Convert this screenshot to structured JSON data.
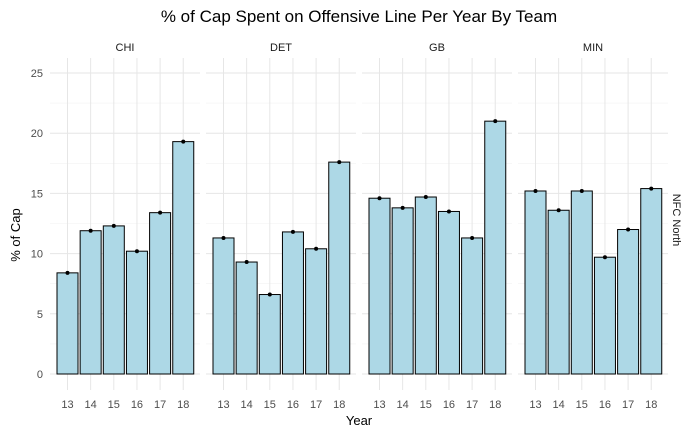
{
  "chart_data": {
    "type": "bar",
    "title": "% of Cap Spent on Offensive Line Per Year By Team",
    "xlabel": "Year",
    "ylabel": "% of Cap",
    "row_facet_label": "NFC North",
    "categories": [
      "13",
      "14",
      "15",
      "16",
      "17",
      "18"
    ],
    "ylim": [
      0,
      25
    ],
    "yticks": [
      0,
      5,
      10,
      15,
      20,
      25
    ],
    "grid": true,
    "bar_fill": "#add8e6",
    "bar_outline": "#000000",
    "point_color": "#000000",
    "panels": [
      {
        "name": "CHI",
        "values": [
          8.4,
          11.9,
          12.3,
          10.2,
          13.4,
          19.3
        ]
      },
      {
        "name": "DET",
        "values": [
          11.3,
          9.3,
          6.6,
          11.8,
          10.4,
          17.6
        ]
      },
      {
        "name": "GB",
        "values": [
          14.6,
          13.8,
          14.7,
          13.5,
          11.3,
          21.0
        ]
      },
      {
        "name": "MIN",
        "values": [
          15.2,
          13.6,
          15.2,
          9.7,
          12.0,
          15.4
        ]
      }
    ]
  }
}
